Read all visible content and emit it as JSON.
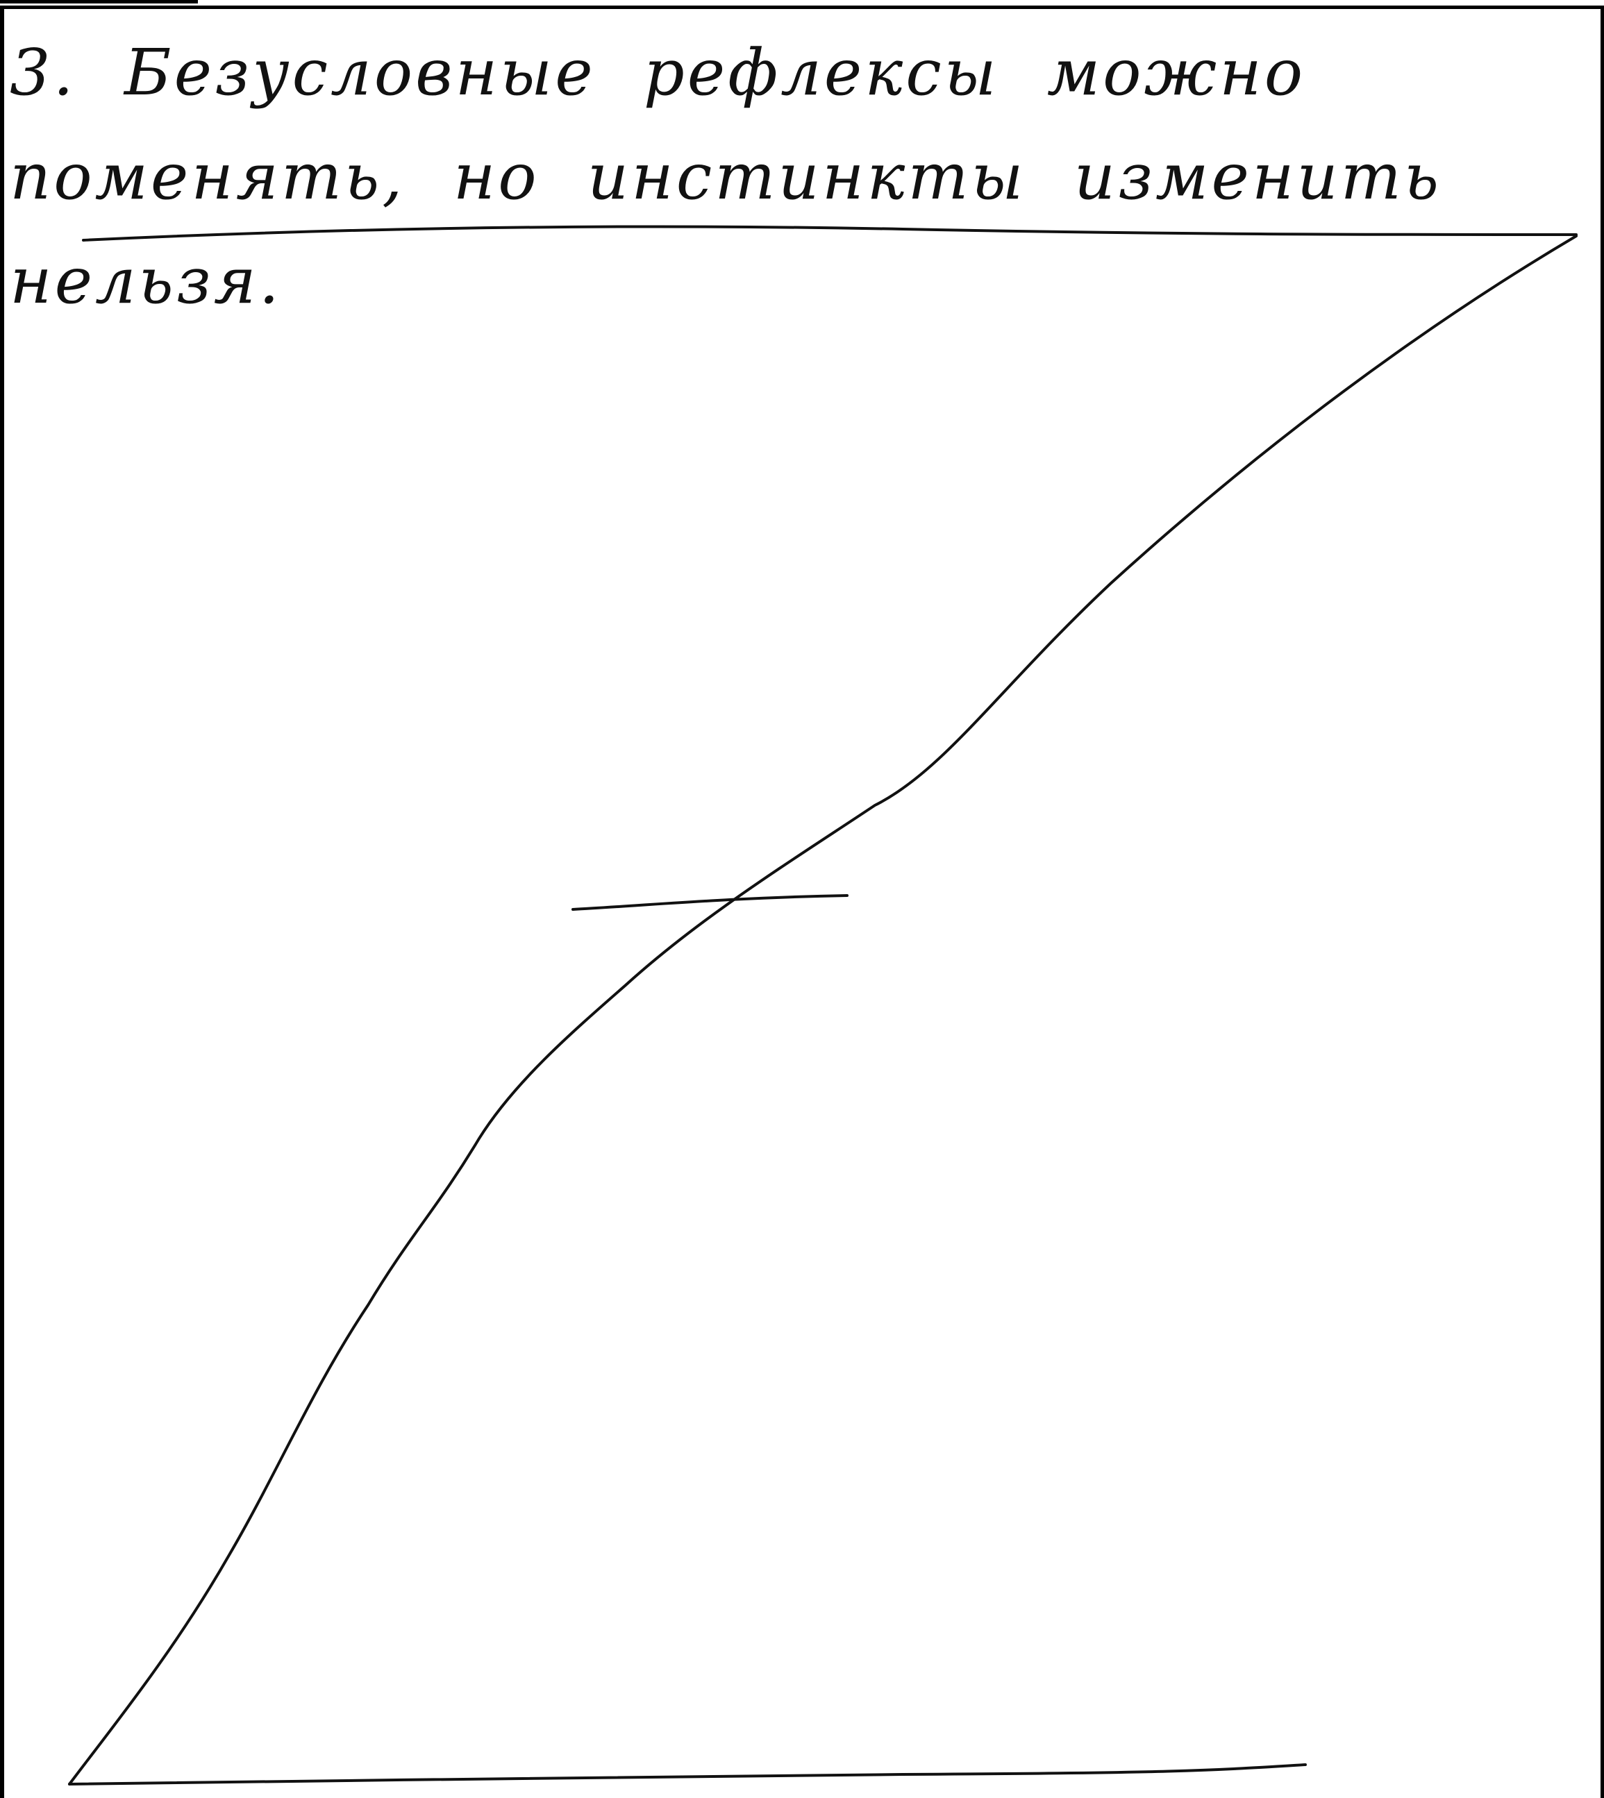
{
  "answer": {
    "text": "3. Безусловные рефлексы можно поменять, но инстинкты изменить нельзя."
  }
}
